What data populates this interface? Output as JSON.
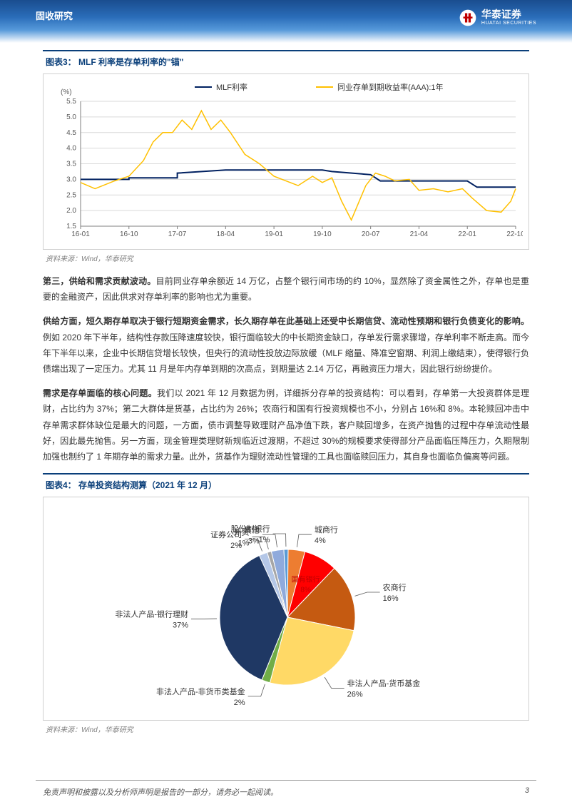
{
  "header": {
    "section": "固收研究",
    "brand_cn": "华泰证券",
    "brand_en": "HUATAI SECURITIES"
  },
  "chart3": {
    "title": "图表3：  MLF 利率是存单利率的\"锚\"",
    "type": "line",
    "ylabel": "(%)",
    "ylim": [
      1.5,
      5.5
    ],
    "ytick_step": 0.5,
    "xticks": [
      "16-01",
      "16-10",
      "17-07",
      "18-04",
      "19-01",
      "19-10",
      "20-07",
      "21-04",
      "22-01",
      "22-10"
    ],
    "series": [
      {
        "name": "MLF利率",
        "color": "#002060",
        "width": 2,
        "x": [
          0,
          1,
          1,
          2,
          2,
          3,
          4,
          5,
          5.2,
          6,
          6.2,
          7,
          8,
          8.2,
          9
        ],
        "y": [
          3.0,
          3.0,
          3.05,
          3.05,
          3.2,
          3.3,
          3.3,
          3.3,
          3.25,
          3.15,
          2.95,
          2.95,
          2.95,
          2.75,
          2.75
        ]
      },
      {
        "name": "同业存单到期收益率(AAA):1年",
        "color": "#ffc000",
        "width": 1.5,
        "x": [
          0,
          0.3,
          0.7,
          1,
          1.3,
          1.5,
          1.7,
          1.9,
          2.1,
          2.3,
          2.5,
          2.7,
          2.9,
          3.1,
          3.4,
          3.7,
          4,
          4.5,
          4.8,
          5,
          5.2,
          5.4,
          5.6,
          5.9,
          6.1,
          6.3,
          6.5,
          6.8,
          7,
          7.3,
          7.6,
          7.9,
          8.1,
          8.4,
          8.7,
          8.9,
          9
        ],
        "y": [
          2.9,
          2.7,
          2.95,
          3.1,
          3.6,
          4.2,
          4.5,
          4.5,
          4.9,
          4.6,
          5.2,
          4.6,
          4.9,
          4.5,
          3.8,
          3.5,
          3.1,
          2.8,
          3.1,
          2.9,
          3.05,
          2.3,
          1.7,
          2.8,
          3.2,
          3.1,
          2.95,
          3.0,
          2.65,
          2.7,
          2.6,
          2.7,
          2.4,
          2.0,
          1.95,
          2.3,
          2.7
        ]
      }
    ],
    "background_color": "#ffffff",
    "grid_color": "#d9d9d9",
    "axis_color": "#7f7f7f",
    "tick_fontsize": 10,
    "legend_pos": "top-center",
    "source": "资料来源：Wind，华泰研究"
  },
  "para1": {
    "lead": "第三，供给和需求贡献波动。",
    "body": "目前同业存单余额近 14 万亿，占整个银行间市场的约 10%，显然除了资金属性之外，存单也是重要的金融资产，因此供求对存单利率的影响也尤为重要。"
  },
  "para2": {
    "lead": "供给方面，短久期存单取决于银行短期资金需求，长久期存单在此基础上还受中长期信贷、流动性预期和银行负债变化的影响。",
    "body": "例如 2020 年下半年，结构性存款压降速度较快，银行面临较大的中长期资金缺口，存单发行需求骤增，存单利率不断走高。而今年下半年以来，企业中长期信贷增长较快，但央行的流动性投放边际放缓（MLF 缩量、降准空窗期、利润上缴结束），使得银行负债端出现了一定压力。尤其 11 月是年内存单到期的次高点，到期量达 2.14 万亿，再融资压力增大，因此银行纷纷提价。"
  },
  "para3": {
    "lead": "需求是存单面临的核心问题。",
    "body": "我们以 2021 年 12 月数据为例，详细拆分存单的投资结构：可以看到，存单第一大投资群体是理财，占比约为 37%；第二大群体是货基，占比约为 26%；农商行和国有行投资规模也不小，分别占 16%和 8%。本轮赎回冲击中存单需求群体缺位是最大的问题，一方面，债市调整导致理财产品净值下跌，客户赎回增多，在资产抛售的过程中存单流动性最好，因此最先抛售。另一方面，现金管理类理财新规临近过渡期，不超过 30%的规模要求使得部分产品面临压降压力，久期限制加强也制约了 1 年期存单的需求力量。此外，货基作为理财流动性管理的工具也面临赎回压力，其自身也面临负偏离等问题。"
  },
  "chart4": {
    "title": "图表4：  存单投资结构测算（2021 年 12 月）",
    "type": "pie",
    "slices": [
      {
        "label": "非法人产品-银行理财",
        "value": 37,
        "pct": "37%",
        "color": "#1f3864",
        "labelpos": "left"
      },
      {
        "label": "非法人产品-货币基金",
        "value": 26,
        "pct": "26%",
        "color": "#ffd966",
        "labelpos": "right"
      },
      {
        "label": "农商行",
        "value": 16,
        "pct": "16%",
        "color": "#c55a11",
        "labelpos": "right"
      },
      {
        "label": "国有银行",
        "value": 8,
        "pct": "8%",
        "color": "#ff0000",
        "labelcolor": "#c00000",
        "labelpos": "inside"
      },
      {
        "label": "城商行",
        "value": 4,
        "pct": "4%",
        "color": "#ed7d31",
        "labelpos": "right"
      },
      {
        "label": "其他",
        "value": 3,
        "pct": "3%",
        "color": "#8faadc",
        "labelpos": "top"
      },
      {
        "label": "证券公司",
        "value": 2,
        "pct": "2%",
        "color": "#b4c7e7",
        "labelpos": "left"
      },
      {
        "label": "非法人产品-非货币类基金",
        "value": 2,
        "pct": "2%",
        "color": "#70ad47",
        "labelpos": "bottom"
      },
      {
        "label": "外资",
        "value": 1,
        "pct": "1%",
        "color": "#a6a6a6",
        "labelpos": "top"
      },
      {
        "label": "股份制银行",
        "value": 1,
        "pct": "1%",
        "color": "#5b9bd5",
        "labelpos": "top"
      }
    ],
    "label_fontsize": 11,
    "line_color": "#595959",
    "background_color": "#ffffff",
    "source": "资料来源：Wind，华泰研究"
  },
  "footer": {
    "disclaimer": "免责声明和披露以及分析师声明是报告的一部分，请务必一起阅读。",
    "page": "3"
  },
  "colors": {
    "brand_blue": "#0a3f7a",
    "header_gradient_top": "#1a4d8f",
    "header_gradient_bottom": "#ffffff"
  }
}
